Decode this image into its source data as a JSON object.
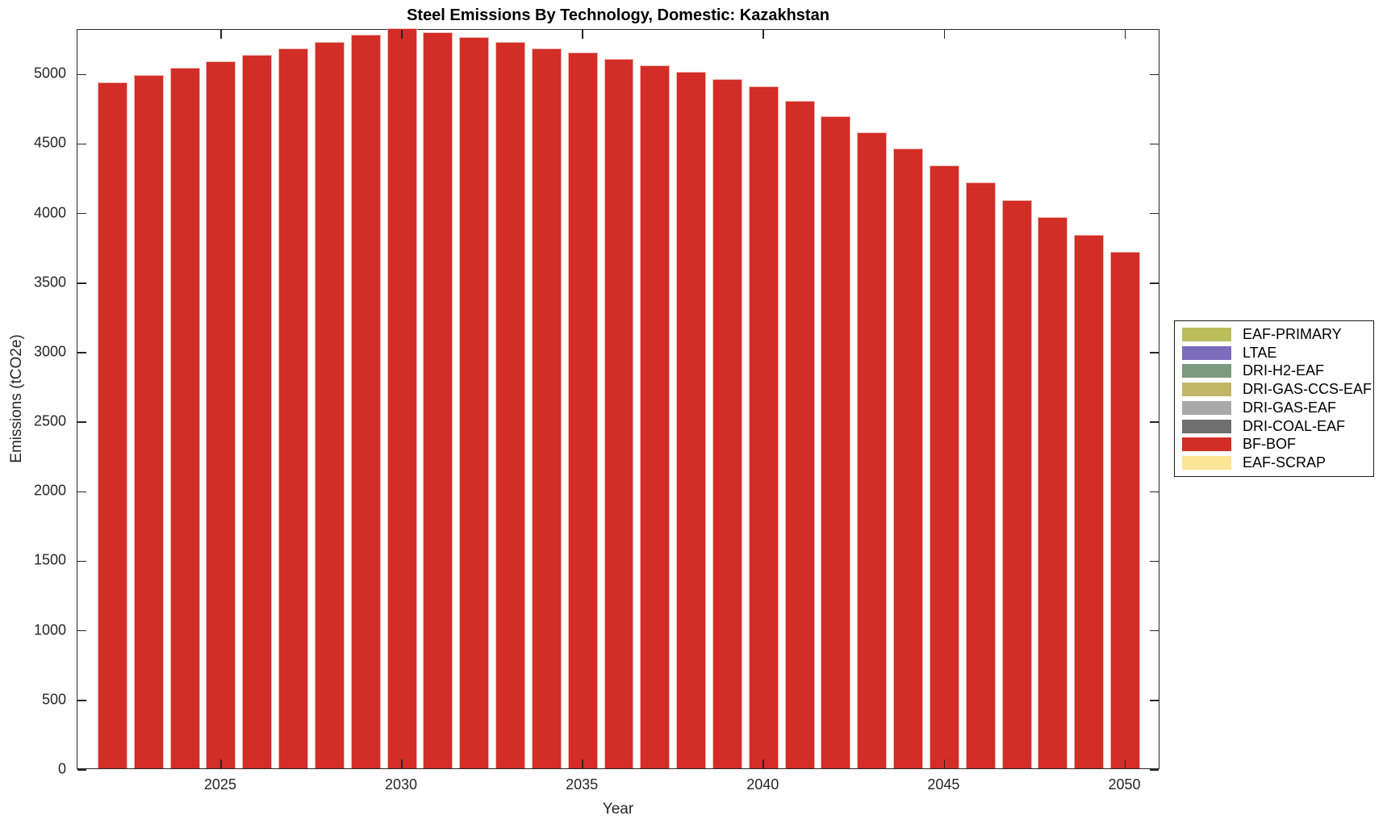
{
  "title": "Steel Emissions By Technology, Domestic: Kazakhstan",
  "chart_data": {
    "type": "bar",
    "stacked": true,
    "title": "Steel Emissions By Technology, Domestic: Kazakhstan",
    "xlabel": "Year",
    "ylabel": "Emissions (tCO2e)",
    "x": [
      2022,
      2023,
      2024,
      2025,
      2026,
      2027,
      2028,
      2029,
      2030,
      2031,
      2032,
      2033,
      2034,
      2035,
      2036,
      2037,
      2038,
      2039,
      2040,
      2041,
      2042,
      2043,
      2044,
      2045,
      2046,
      2047,
      2048,
      2049,
      2050
    ],
    "series": [
      {
        "name": "BF-BOF",
        "color": "#d22d26",
        "values": [
          4935,
          4985,
          5035,
          5082,
          5128,
          5176,
          5224,
          5272,
          5321,
          5291,
          5256,
          5220,
          5178,
          5146,
          5102,
          5057,
          5009,
          4957,
          4905,
          4798,
          4686,
          4570,
          4454,
          4334,
          4214,
          4086,
          3964,
          3838,
          3714
        ]
      }
    ],
    "bar_edge_color": "#efb5ad",
    "bar_width_fraction": 0.825,
    "xlim": [
      2021.03,
      2050.97
    ],
    "ylim": [
      0,
      5321
    ],
    "xticks": [
      2025,
      2030,
      2035,
      2040,
      2045,
      2050
    ],
    "yticks": [
      0,
      500,
      1000,
      1500,
      2000,
      2500,
      3000,
      3500,
      4000,
      4500,
      5000
    ],
    "grid": false,
    "legend_position": "right-outside",
    "legend": [
      {
        "label": "EAF-PRIMARY",
        "color": "#b9bd5a"
      },
      {
        "label": "LTAE",
        "color": "#7b6cbe"
      },
      {
        "label": "DRI-H2-EAF",
        "color": "#7c9a80"
      },
      {
        "label": "DRI-GAS-CCS-EAF",
        "color": "#c3b566"
      },
      {
        "label": "DRI-GAS-EAF",
        "color": "#a9a9a9"
      },
      {
        "label": "DRI-COAL-EAF",
        "color": "#6f6f6f"
      },
      {
        "label": "BF-BOF",
        "color": "#d22d26"
      },
      {
        "label": "EAF-SCRAP",
        "color": "#fce595"
      }
    ]
  }
}
